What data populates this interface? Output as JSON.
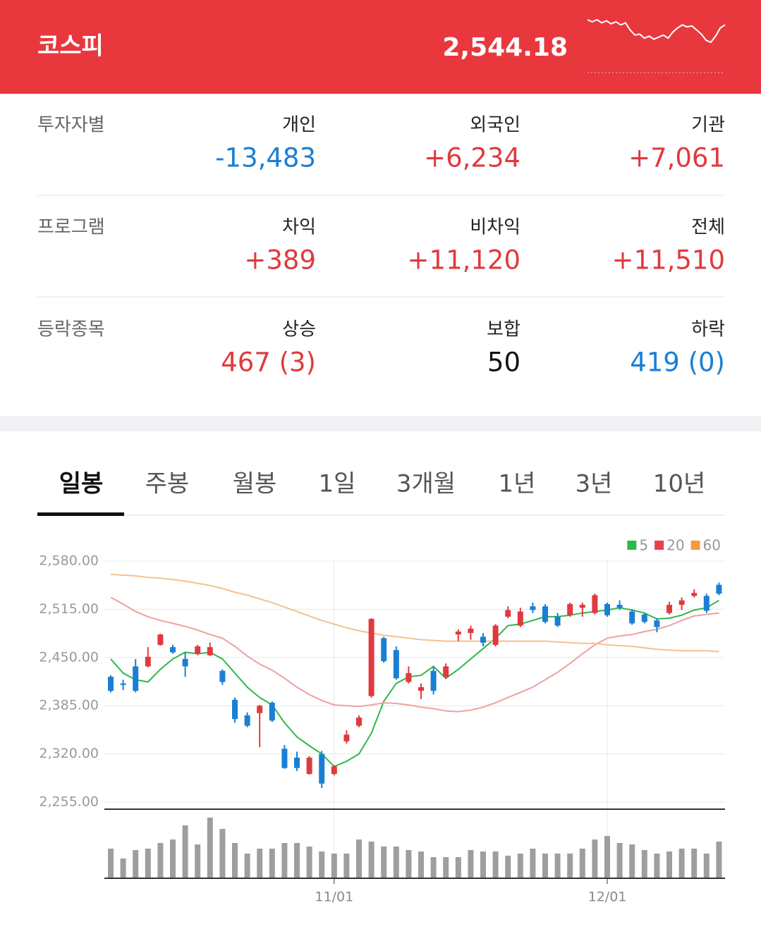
{
  "header": {
    "title": "코스피",
    "value": "2,544.18",
    "sparkline": [
      60,
      58,
      60,
      57,
      59,
      56,
      58,
      55,
      57,
      50,
      45,
      46,
      42,
      44,
      41,
      43,
      45,
      42,
      48,
      52,
      55,
      53,
      54,
      50,
      46,
      40,
      38,
      44,
      52,
      55
    ]
  },
  "table": {
    "rows": [
      {
        "label": "투자자별",
        "cells": [
          {
            "name": "개인",
            "value": "-13,483",
            "color": "#1a7fd4"
          },
          {
            "name": "외국인",
            "value": "+6,234",
            "color": "#e03a3e"
          },
          {
            "name": "기관",
            "value": "+7,061",
            "color": "#e03a3e"
          }
        ]
      },
      {
        "label": "프로그램",
        "cells": [
          {
            "name": "차익",
            "value": "+389",
            "color": "#e03a3e"
          },
          {
            "name": "비차익",
            "value": "+11,120",
            "color": "#e03a3e"
          },
          {
            "name": "전체",
            "value": "+11,510",
            "color": "#e03a3e"
          }
        ]
      },
      {
        "label": "등락종목",
        "cells": [
          {
            "name": "상승",
            "value": "467 (3)",
            "color": "#e03a3e"
          },
          {
            "name": "보합",
            "value": "50",
            "color": "#111111"
          },
          {
            "name": "하락",
            "value": "419 (0)",
            "color": "#1a7fd4"
          }
        ]
      }
    ]
  },
  "tabs": [
    "일봉",
    "주봉",
    "월봉",
    "1일",
    "3개월",
    "1년",
    "3년",
    "10년"
  ],
  "chart": {
    "type": "candlestick",
    "up_color": "#e03a3e",
    "down_color": "#1a7fd4",
    "volume_color": "#9e9e9e",
    "ylim": [
      2255,
      2580
    ],
    "yticks": [
      {
        "value": 2580,
        "label": "2,580.00"
      },
      {
        "value": 2515,
        "label": "2,515.00"
      },
      {
        "value": 2450,
        "label": "2,450.00"
      },
      {
        "value": 2385,
        "label": "2,385.00"
      },
      {
        "value": 2320,
        "label": "2,320.00"
      },
      {
        "value": 2255,
        "label": "2,255.00"
      }
    ],
    "categories": [
      null,
      null,
      null,
      null,
      null,
      null,
      null,
      null,
      null,
      null,
      null,
      null,
      null,
      null,
      null,
      null,
      null,
      null,
      "11/01",
      null,
      null,
      null,
      null,
      null,
      null,
      null,
      null,
      null,
      null,
      null,
      null,
      null,
      null,
      null,
      null,
      null,
      null,
      null,
      null,
      null,
      "12/01",
      null,
      null,
      null,
      null,
      null,
      null,
      null,
      null,
      null
    ],
    "open": [
      2424,
      2415,
      2438,
      2438,
      2467,
      2464,
      2448,
      2455,
      2453,
      2432,
      2393,
      2372,
      2375,
      2389,
      2327,
      2315,
      2293,
      2320,
      2293,
      2337,
      2358,
      2398,
      2476,
      2460,
      2417,
      2405,
      2432,
      2424,
      2481,
      2483,
      2478,
      2467,
      2505,
      2493,
      2519,
      2519,
      2505,
      2507,
      2517,
      2510,
      2522,
      2521,
      2512,
      2508,
      2500,
      2510,
      2521,
      2533,
      2533,
      2548
    ],
    "high": [
      2426,
      2420,
      2448,
      2464,
      2482,
      2467,
      2457,
      2467,
      2470,
      2434,
      2396,
      2376,
      2386,
      2391,
      2332,
      2323,
      2317,
      2324,
      2305,
      2352,
      2372,
      2503,
      2478,
      2465,
      2438,
      2415,
      2438,
      2442,
      2488,
      2493,
      2483,
      2495,
      2519,
      2517,
      2524,
      2522,
      2510,
      2524,
      2524,
      2536,
      2524,
      2527,
      2515,
      2510,
      2503,
      2525,
      2531,
      2542,
      2536,
      2551
    ],
    "low": [
      2403,
      2406,
      2403,
      2437,
      2466,
      2455,
      2424,
      2453,
      2452,
      2413,
      2362,
      2356,
      2329,
      2363,
      2300,
      2297,
      2292,
      2274,
      2291,
      2334,
      2356,
      2396,
      2443,
      2420,
      2415,
      2394,
      2400,
      2421,
      2472,
      2474,
      2465,
      2465,
      2503,
      2491,
      2510,
      2496,
      2491,
      2505,
      2505,
      2508,
      2505,
      2514,
      2494,
      2496,
      2484,
      2508,
      2514,
      2531,
      2510,
      2534
    ],
    "close": [
      2405,
      2413,
      2405,
      2451,
      2481,
      2457,
      2438,
      2465,
      2464,
      2417,
      2367,
      2358,
      2385,
      2365,
      2301,
      2301,
      2315,
      2280,
      2303,
      2346,
      2369,
      2502,
      2445,
      2422,
      2429,
      2410,
      2405,
      2438,
      2485,
      2489,
      2470,
      2493,
      2514,
      2512,
      2514,
      2498,
      2493,
      2522,
      2521,
      2534,
      2507,
      2517,
      2496,
      2498,
      2491,
      2521,
      2527,
      2537,
      2513,
      2536
    ],
    "series": [
      {
        "name": "5",
        "color": "#2db84a",
        "values": [
          2448,
          2429,
          2420,
          2417,
          2434,
          2448,
          2457,
          2455,
          2457,
          2448,
          2429,
          2410,
          2396,
          2386,
          2362,
          2343,
          2331,
          2320,
          2303,
          2310,
          2320,
          2348,
          2391,
          2415,
          2424,
          2426,
          2438,
          2422,
          2434,
          2448,
          2462,
          2476,
          2493,
          2495,
          2500,
          2505,
          2505,
          2507,
          2510,
          2512,
          2514,
          2517,
          2514,
          2510,
          2502,
          2503,
          2507,
          2514,
          2517,
          2527
        ]
      },
      {
        "name": "20",
        "color": "#f0a0a0",
        "legend_color": "#e8414a",
        "values": [
          2531,
          2522,
          2512,
          2505,
          2500,
          2496,
          2492,
          2487,
          2481,
          2476,
          2465,
          2452,
          2441,
          2433,
          2422,
          2410,
          2400,
          2392,
          2386,
          2385,
          2384,
          2386,
          2389,
          2388,
          2386,
          2383,
          2381,
          2378,
          2377,
          2379,
          2383,
          2389,
          2396,
          2403,
          2410,
          2420,
          2430,
          2442,
          2455,
          2467,
          2476,
          2479,
          2481,
          2485,
          2488,
          2493,
          2500,
          2506,
          2508,
          2510
        ]
      },
      {
        "name": "60",
        "color": "#f5c08f",
        "legend_color": "#f59a3f",
        "values": [
          2562,
          2561,
          2560,
          2558,
          2557,
          2555,
          2553,
          2550,
          2547,
          2543,
          2538,
          2534,
          2529,
          2524,
          2518,
          2512,
          2506,
          2500,
          2495,
          2490,
          2486,
          2483,
          2480,
          2478,
          2476,
          2474,
          2473,
          2472,
          2472,
          2472,
          2472,
          2472,
          2472,
          2472,
          2472,
          2472,
          2471,
          2470,
          2469,
          2469,
          2467,
          2466,
          2465,
          2463,
          2461,
          2460,
          2459,
          2459,
          2459,
          2458
        ]
      }
    ],
    "volume": [
      42,
      28,
      40,
      42,
      50,
      55,
      75,
      48,
      86,
      70,
      50,
      35,
      42,
      42,
      50,
      50,
      45,
      38,
      35,
      35,
      55,
      52,
      45,
      45,
      40,
      38,
      30,
      30,
      30,
      40,
      38,
      38,
      32,
      35,
      42,
      35,
      35,
      35,
      42,
      55,
      60,
      50,
      48,
      40,
      35,
      38,
      42,
      42,
      35,
      52
    ]
  }
}
